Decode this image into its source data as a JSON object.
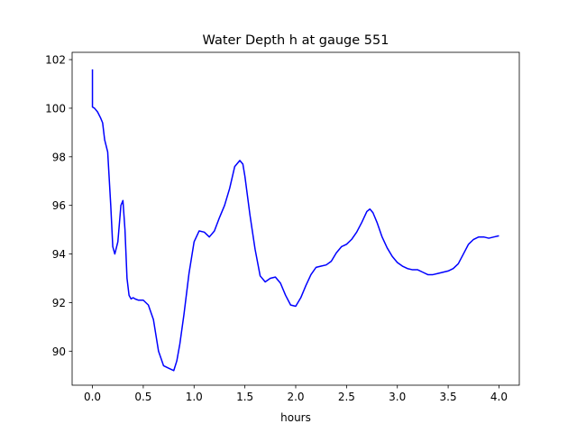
{
  "chart_data": {
    "type": "line",
    "title": "Water Depth h at gauge 551",
    "xlabel": "hours",
    "ylabel": "",
    "xlim": [
      -0.2,
      4.2
    ],
    "ylim": [
      88.6,
      102.3
    ],
    "xticks": [
      0.0,
      0.5,
      1.0,
      1.5,
      2.0,
      2.5,
      3.0,
      3.5,
      4.0
    ],
    "xtick_labels": [
      "0.0",
      "0.5",
      "1.0",
      "1.5",
      "2.0",
      "2.5",
      "3.0",
      "3.5",
      "4.0"
    ],
    "yticks": [
      90,
      92,
      94,
      96,
      98,
      100,
      102
    ],
    "ytick_labels": [
      "90",
      "92",
      "94",
      "96",
      "98",
      "100",
      "102"
    ],
    "grid": false,
    "series": [
      {
        "color": "#0000ff",
        "x": [
          0.0,
          0.0,
          0.0,
          0.02,
          0.05,
          0.08,
          0.1,
          0.12,
          0.15,
          0.18,
          0.2,
          0.22,
          0.25,
          0.28,
          0.3,
          0.32,
          0.34,
          0.36,
          0.38,
          0.4,
          0.42,
          0.45,
          0.5,
          0.55,
          0.6,
          0.65,
          0.7,
          0.75,
          0.8,
          0.83,
          0.86,
          0.9,
          0.95,
          1.0,
          1.05,
          1.1,
          1.15,
          1.2,
          1.25,
          1.3,
          1.35,
          1.4,
          1.45,
          1.48,
          1.5,
          1.55,
          1.6,
          1.65,
          1.7,
          1.75,
          1.8,
          1.85,
          1.9,
          1.95,
          2.0,
          2.05,
          2.1,
          2.15,
          2.2,
          2.25,
          2.3,
          2.35,
          2.4,
          2.45,
          2.5,
          2.55,
          2.6,
          2.65,
          2.7,
          2.73,
          2.76,
          2.8,
          2.85,
          2.9,
          2.95,
          3.0,
          3.05,
          3.1,
          3.15,
          3.2,
          3.25,
          3.3,
          3.35,
          3.4,
          3.45,
          3.5,
          3.55,
          3.6,
          3.65,
          3.7,
          3.75,
          3.8,
          3.85,
          3.9,
          3.95,
          4.0
        ],
        "values": [
          101.6,
          100.1,
          100.05,
          100.0,
          99.85,
          99.6,
          99.4,
          98.7,
          98.2,
          96.0,
          94.3,
          94.0,
          94.5,
          96.0,
          96.2,
          95.0,
          93.0,
          92.3,
          92.15,
          92.2,
          92.15,
          92.1,
          92.1,
          91.9,
          91.3,
          90.0,
          89.4,
          89.3,
          89.2,
          89.6,
          90.3,
          91.5,
          93.2,
          94.5,
          94.95,
          94.9,
          94.7,
          94.95,
          95.5,
          96.0,
          96.7,
          97.6,
          97.85,
          97.7,
          97.2,
          95.6,
          94.2,
          93.1,
          92.85,
          93.0,
          93.05,
          92.8,
          92.3,
          91.9,
          91.85,
          92.2,
          92.7,
          93.15,
          93.45,
          93.5,
          93.55,
          93.7,
          94.05,
          94.3,
          94.4,
          94.6,
          94.9,
          95.3,
          95.75,
          95.85,
          95.7,
          95.3,
          94.7,
          94.25,
          93.9,
          93.65,
          93.5,
          93.4,
          93.35,
          93.35,
          93.25,
          93.15,
          93.15,
          93.2,
          93.25,
          93.3,
          93.4,
          93.6,
          94.0,
          94.4,
          94.6,
          94.7,
          94.7,
          94.65,
          94.7,
          94.75
        ]
      }
    ]
  }
}
